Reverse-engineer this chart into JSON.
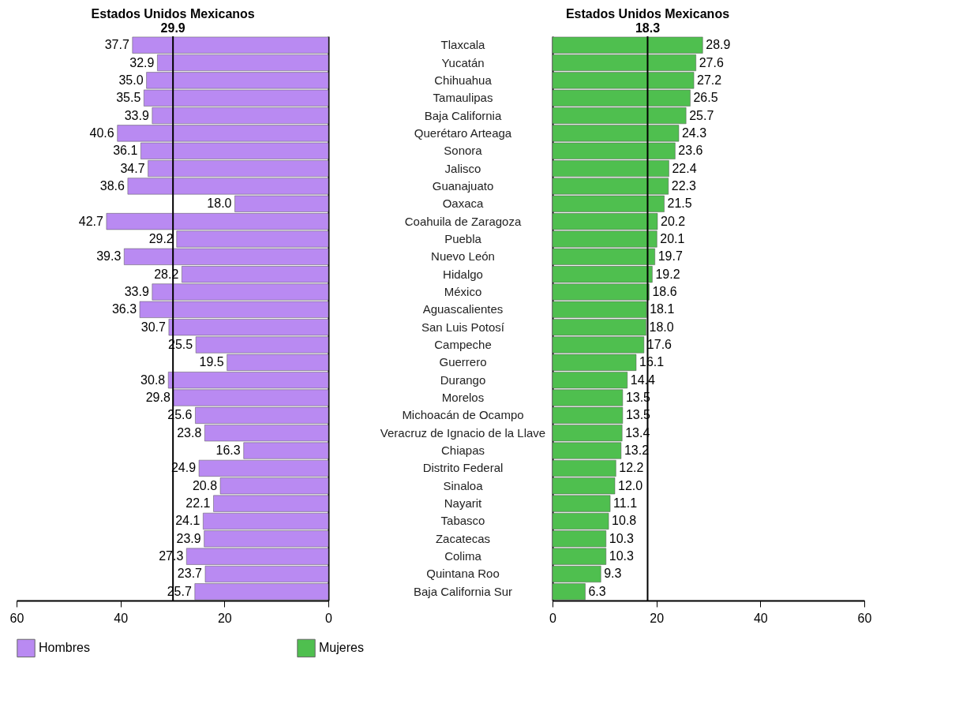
{
  "chart_data": [
    {
      "type": "bar",
      "orientation": "horizontal",
      "title": "Estados Unidos Mexicanos",
      "categories": [
        "Tlaxcala",
        "Yucatán",
        "Chihuahua",
        "Tamaulipas",
        "Baja California",
        "Querétaro Arteaga",
        "Sonora",
        "Jalisco",
        "Guanajuato",
        "Oaxaca",
        "Coahuila de Zaragoza",
        "Puebla",
        "Nuevo León",
        "Hidalgo",
        "México",
        "Aguascalientes",
        "San Luis Potosí",
        "Campeche",
        "Guerrero",
        "Durango",
        "Morelos",
        "Michoacán de Ocampo",
        "Veracruz de Ignacio de la Llave",
        "Chiapas",
        "Distrito Federal",
        "Sinaloa",
        "Nayarit",
        "Tabasco",
        "Zacatecas",
        "Colima",
        "Quintana Roo",
        "Baja California Sur"
      ],
      "series": [
        {
          "name": "Hombres",
          "color": "#b98af2",
          "values": [
            37.7,
            32.9,
            35.0,
            35.5,
            33.9,
            40.6,
            36.1,
            34.7,
            38.6,
            18.0,
            42.7,
            29.2,
            39.3,
            28.2,
            33.9,
            36.3,
            30.7,
            25.5,
            19.5,
            30.8,
            29.8,
            25.6,
            23.8,
            16.3,
            24.9,
            20.8,
            22.1,
            24.1,
            23.9,
            27.3,
            23.7,
            25.7
          ],
          "value_labels": [
            "37.7",
            "32.9",
            "35.0",
            "35.5",
            "33.9",
            "40.6",
            "36.1",
            "34.7",
            "38.6",
            "18.0",
            "42.7",
            "29.2",
            "39.3",
            "28.2",
            "33.9",
            "36.3",
            "30.7",
            "25.5",
            "19.5",
            "30.8",
            "29.8",
            "25.6",
            "23.8",
            "16.3",
            "24.9",
            "20.8",
            "22.1",
            "24.1",
            "23.9",
            "27.3",
            "23.7",
            "25.7"
          ]
        }
      ],
      "xlim": [
        60,
        0
      ],
      "xticks": [
        0,
        20,
        40,
        60
      ],
      "grid": false,
      "legend": "bottom",
      "ref_lines": [
        {
          "axis": "x",
          "value": 29.9,
          "label": "29.9"
        }
      ]
    },
    {
      "type": "bar",
      "orientation": "horizontal",
      "title": "Estados Unidos Mexicanos",
      "series": [
        {
          "name": "Mujeres",
          "color": "#4fbf4f",
          "values": [
            28.9,
            27.6,
            27.2,
            26.5,
            25.7,
            24.3,
            23.6,
            22.4,
            22.3,
            21.5,
            20.2,
            20.1,
            19.7,
            19.2,
            18.6,
            18.1,
            18.0,
            17.6,
            16.1,
            14.4,
            13.5,
            13.5,
            13.4,
            13.2,
            12.2,
            12.0,
            11.1,
            10.8,
            10.3,
            10.3,
            9.3,
            6.3
          ],
          "value_labels": [
            "28.9",
            "27.6",
            "27.2",
            "26.5",
            "25.7",
            "24.3",
            "23.6",
            "22.4",
            "22.3",
            "21.5",
            "20.2",
            "20.1",
            "19.7",
            "19.2",
            "18.6",
            "18.1",
            "18.0",
            "17.6",
            "16.1",
            "14.4",
            "13.5",
            "13.5",
            "13.4",
            "13.2",
            "12.2",
            "12.0",
            "11.1",
            "10.8",
            "10.3",
            "10.3",
            "9.3",
            "6.3"
          ]
        }
      ],
      "xlim": [
        0,
        60
      ],
      "xticks": [
        0,
        20,
        40,
        60
      ],
      "grid": false,
      "legend": "bottom",
      "tick_labels": "x",
      "ref_lines": [
        {
          "axis": "x",
          "value": 18.3,
          "label": "18.3"
        }
      ]
    }
  ]
}
